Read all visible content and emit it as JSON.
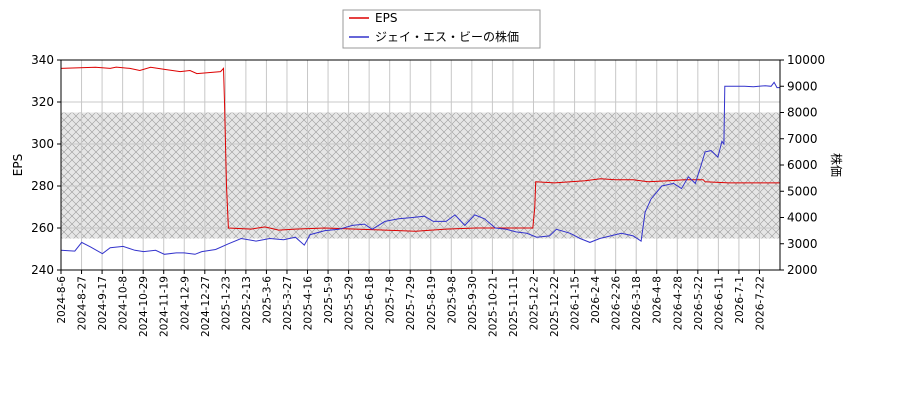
{
  "chart_data": {
    "type": "line",
    "title": "",
    "xlabel": "",
    "ylabel_left": "EPS",
    "ylabel_right": "株価",
    "ylim_left": [
      240,
      340
    ],
    "ylim_right": [
      2000,
      10000
    ],
    "yticks_left": [
      240,
      260,
      280,
      300,
      320,
      340
    ],
    "yticks_right": [
      2000,
      3000,
      4000,
      5000,
      6000,
      7000,
      8000,
      9000,
      10000
    ],
    "x_range": [
      "2024-08-06",
      "2026-08-06"
    ],
    "xtick_labels": [
      "2024-8-6",
      "2024-8-27",
      "2024-9-17",
      "2024-10-8",
      "2024-10-29",
      "2024-11-19",
      "2024-12-9",
      "2024-12-27",
      "2025-1-23",
      "2025-2-13",
      "2025-3-6",
      "2025-3-27",
      "2025-4-16",
      "2025-5-9",
      "2025-5-29",
      "2025-6-18",
      "2025-7-8",
      "2025-7-29",
      "2025-8-19",
      "2025-9-8",
      "2025-9-30",
      "2025-10-21",
      "2025-11-11",
      "2025-12-2",
      "2025-12-22",
      "2026-1-15",
      "2026-2-4",
      "2026-2-26",
      "2026-3-18",
      "2026-4-8",
      "2026-4-28",
      "2026-5-22",
      "2026-6-11",
      "2026-7-1",
      "2026-7-22"
    ],
    "grid": true,
    "shaded_band_right_axis": [
      3200,
      8000
    ],
    "legend": {
      "placement": "top-center"
    },
    "series": [
      {
        "name": "EPS",
        "axis": "left",
        "color": "#dd0000",
        "points": [
          [
            "2024-08-06",
            336
          ],
          [
            "2024-09-10",
            336.5
          ],
          [
            "2024-09-25",
            336
          ],
          [
            "2024-10-01",
            336.6
          ],
          [
            "2024-10-15",
            336
          ],
          [
            "2024-10-25",
            335
          ],
          [
            "2024-11-05",
            336.5
          ],
          [
            "2024-11-20",
            335.5
          ],
          [
            "2024-12-05",
            334.5
          ],
          [
            "2024-12-15",
            335
          ],
          [
            "2024-12-22",
            333.5
          ],
          [
            "2025-01-15",
            334.5
          ],
          [
            "2025-01-18",
            336
          ],
          [
            "2025-01-19",
            320
          ],
          [
            "2025-01-21",
            280
          ],
          [
            "2025-01-23",
            260
          ],
          [
            "2025-02-15",
            259.5
          ],
          [
            "2025-03-01",
            260.5
          ],
          [
            "2025-03-15",
            259
          ],
          [
            "2025-04-01",
            259.5
          ],
          [
            "2025-05-01",
            260
          ],
          [
            "2025-06-01",
            259.5
          ],
          [
            "2025-07-01",
            259
          ],
          [
            "2025-08-01",
            258.5
          ],
          [
            "2025-09-01",
            259.5
          ],
          [
            "2025-10-01",
            260
          ],
          [
            "2025-11-01",
            260
          ],
          [
            "2025-11-28",
            260
          ],
          [
            "2025-11-30",
            270
          ],
          [
            "2025-12-01",
            282
          ],
          [
            "2025-12-20",
            281.5
          ],
          [
            "2026-01-20",
            282.5
          ],
          [
            "2026-02-05",
            283.5
          ],
          [
            "2026-02-20",
            283
          ],
          [
            "2026-03-10",
            283
          ],
          [
            "2026-03-25",
            282
          ],
          [
            "2026-04-15",
            282.5
          ],
          [
            "2026-05-01",
            283
          ],
          [
            "2026-05-20",
            283
          ],
          [
            "2026-05-22",
            282
          ],
          [
            "2026-06-15",
            281.5
          ],
          [
            "2026-07-10",
            281.5
          ],
          [
            "2026-08-06",
            281.5
          ]
        ]
      },
      {
        "name": "ジェイ・エス・ビーの株価",
        "axis": "right",
        "color": "#3333cc",
        "points": [
          [
            "2024-08-06",
            2750
          ],
          [
            "2024-08-20",
            2720
          ],
          [
            "2024-08-27",
            3050
          ],
          [
            "2024-09-05",
            2880
          ],
          [
            "2024-09-17",
            2620
          ],
          [
            "2024-09-25",
            2850
          ],
          [
            "2024-10-08",
            2900
          ],
          [
            "2024-10-20",
            2750
          ],
          [
            "2024-10-29",
            2700
          ],
          [
            "2024-11-10",
            2750
          ],
          [
            "2024-11-19",
            2600
          ],
          [
            "2024-12-01",
            2650
          ],
          [
            "2024-12-09",
            2650
          ],
          [
            "2024-12-20",
            2600
          ],
          [
            "2024-12-27",
            2700
          ],
          [
            "2025-01-10",
            2780
          ],
          [
            "2025-01-23",
            3000
          ],
          [
            "2025-02-05",
            3200
          ],
          [
            "2025-02-20",
            3100
          ],
          [
            "2025-03-06",
            3200
          ],
          [
            "2025-03-20",
            3150
          ],
          [
            "2025-04-01",
            3250
          ],
          [
            "2025-04-10",
            2950
          ],
          [
            "2025-04-16",
            3350
          ],
          [
            "2025-05-01",
            3500
          ],
          [
            "2025-05-15",
            3550
          ],
          [
            "2025-05-29",
            3700
          ],
          [
            "2025-06-10",
            3750
          ],
          [
            "2025-06-18",
            3550
          ],
          [
            "2025-07-01",
            3850
          ],
          [
            "2025-07-15",
            3950
          ],
          [
            "2025-07-29",
            4000
          ],
          [
            "2025-08-10",
            4050
          ],
          [
            "2025-08-19",
            3850
          ],
          [
            "2025-09-01",
            3850
          ],
          [
            "2025-09-10",
            4100
          ],
          [
            "2025-09-20",
            3700
          ],
          [
            "2025-09-30",
            4100
          ],
          [
            "2025-10-10",
            3950
          ],
          [
            "2025-10-21",
            3600
          ],
          [
            "2025-11-01",
            3550
          ],
          [
            "2025-11-11",
            3450
          ],
          [
            "2025-11-22",
            3400
          ],
          [
            "2025-12-02",
            3250
          ],
          [
            "2025-12-15",
            3300
          ],
          [
            "2025-12-22",
            3550
          ],
          [
            "2026-01-05",
            3400
          ],
          [
            "2026-01-15",
            3200
          ],
          [
            "2026-01-25",
            3050
          ],
          [
            "2026-02-04",
            3200
          ],
          [
            "2026-02-15",
            3300
          ],
          [
            "2026-02-26",
            3400
          ],
          [
            "2026-03-10",
            3300
          ],
          [
            "2026-03-18",
            3100
          ],
          [
            "2026-03-22",
            4200
          ],
          [
            "2026-03-28",
            4700
          ],
          [
            "2026-04-08",
            5200
          ],
          [
            "2026-04-20",
            5300
          ],
          [
            "2026-04-28",
            5100
          ],
          [
            "2026-05-05",
            5550
          ],
          [
            "2026-05-12",
            5300
          ],
          [
            "2026-05-18",
            6000
          ],
          [
            "2026-05-22",
            6500
          ],
          [
            "2026-05-28",
            6550
          ],
          [
            "2026-06-04",
            6300
          ],
          [
            "2026-06-08",
            6900
          ],
          [
            "2026-06-10",
            6800
          ],
          [
            "2026-06-11",
            9000
          ],
          [
            "2026-06-20",
            9000
          ],
          [
            "2026-07-01",
            9000
          ],
          [
            "2026-07-10",
            8980
          ],
          [
            "2026-07-22",
            9020
          ],
          [
            "2026-07-28",
            9000
          ],
          [
            "2026-07-31",
            9150
          ],
          [
            "2026-08-03",
            8950
          ],
          [
            "2026-08-06",
            8950
          ]
        ]
      }
    ]
  }
}
